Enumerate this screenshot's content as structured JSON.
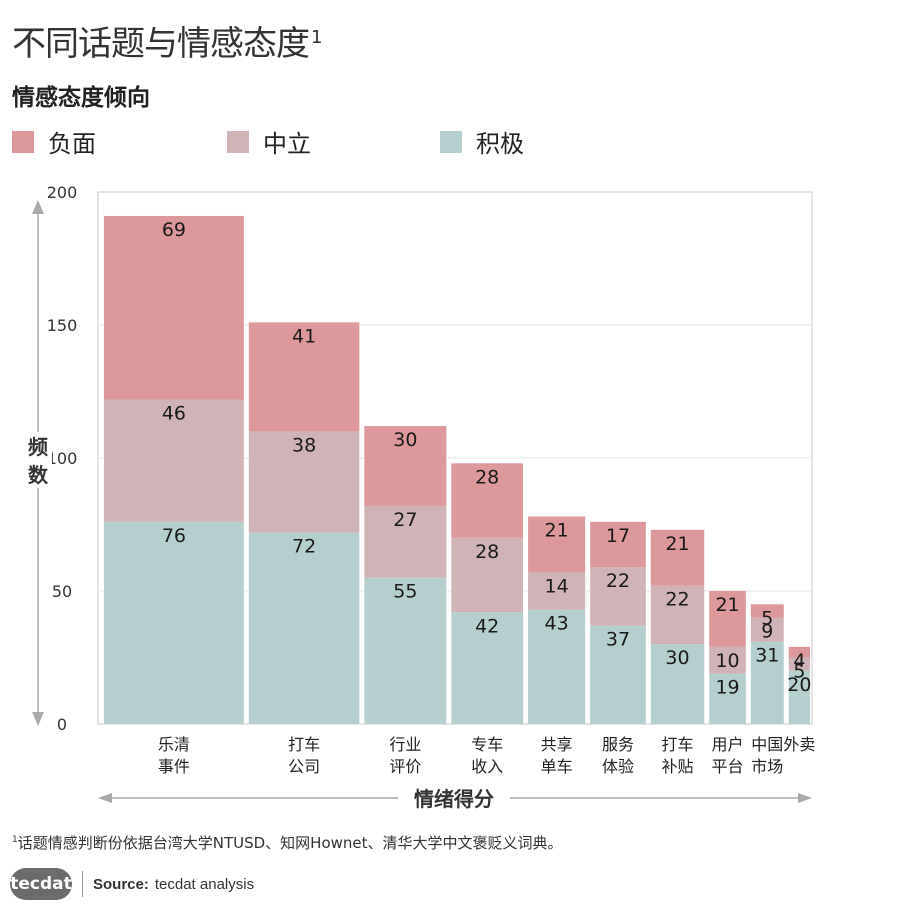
{
  "title": "不同话题与情感态度",
  "title_sup": "1",
  "subtitle": "情感态度倾向",
  "legend": [
    {
      "label": "负面",
      "color": "#dc989b"
    },
    {
      "label": "中立",
      "color": "#d0b3b6"
    },
    {
      "label": "积极",
      "color": "#b5cfce"
    }
  ],
  "chart_data": {
    "type": "bar",
    "subtype": "stacked-variable-width",
    "ylabel": "频数",
    "xlabel": "情绪得分",
    "ylim": [
      0,
      200
    ],
    "yticks": [
      0,
      50,
      100,
      150,
      200
    ],
    "grid": true,
    "categories": [
      {
        "line1": "乐清",
        "line2": "事件"
      },
      {
        "line1": "打车",
        "line2": "公司"
      },
      {
        "line1": "行业",
        "line2": "评价"
      },
      {
        "line1": "专车",
        "line2": "收入"
      },
      {
        "line1": "共享",
        "line2": "单车"
      },
      {
        "line1": "服务",
        "line2": "体验"
      },
      {
        "line1": "打车",
        "line2": "补贴"
      },
      {
        "line1": "用户",
        "line2": "平台"
      },
      {
        "line1": "中国",
        "line2": "市场"
      },
      {
        "line1": "外卖",
        "line2": ""
      }
    ],
    "series": [
      {
        "name": "积极",
        "color": "#b5cfce",
        "values": [
          76,
          72,
          55,
          42,
          43,
          37,
          30,
          19,
          31,
          20
        ]
      },
      {
        "name": "中立",
        "color": "#d0b3b6",
        "values": [
          46,
          38,
          27,
          28,
          14,
          22,
          22,
          10,
          9,
          5
        ]
      },
      {
        "name": "负面",
        "color": "#dc989b",
        "values": [
          69,
          41,
          30,
          28,
          21,
          17,
          21,
          21,
          5,
          4
        ]
      }
    ]
  },
  "footnote": {
    "sup": "1",
    "text": "话题情感判断份依据台湾大学NTUSD、知网Hownet、清华大学中文褒贬义词典。"
  },
  "footer": {
    "logo": "tecdat",
    "source_key": "Source:",
    "source_value": "tecdat analysis"
  }
}
